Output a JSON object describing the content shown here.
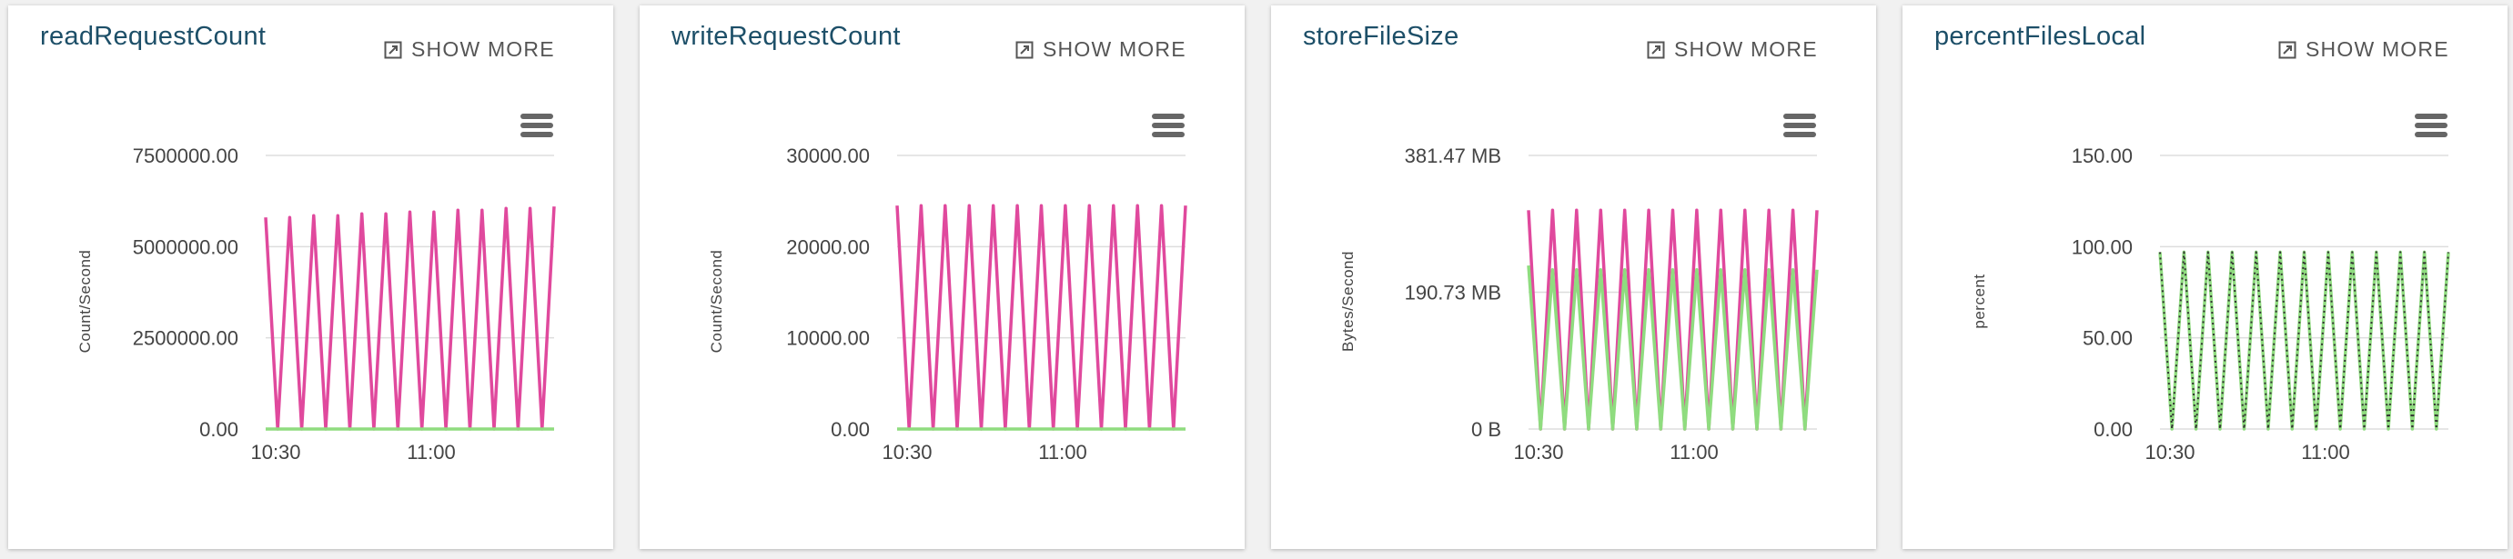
{
  "show_more_label": "SHOW MORE",
  "colors": {
    "pink": "#e0499d",
    "green": "#8fdc7f",
    "dark": "#333333",
    "grid": "#dddddd"
  },
  "chart_data": [
    {
      "type": "line",
      "title": "readRequestCount",
      "ylabel": "Count/Second",
      "ylim": [
        0,
        7500000
      ],
      "yticks": [
        0,
        2500000,
        5000000,
        7500000
      ],
      "yticklabels": [
        "0.00",
        "2500000.00",
        "5000000.00",
        "7500000.00"
      ],
      "xticklabels": [
        "10:30",
        "11:00"
      ],
      "grid": true,
      "series": [
        {
          "color": "pink",
          "style": "solid",
          "values": [
            5800000,
            0,
            5800000,
            0,
            5850000,
            0,
            5850000,
            0,
            5900000,
            0,
            5900000,
            0,
            5950000,
            0,
            5950000,
            0,
            6000000,
            0,
            6000000,
            0,
            6050000,
            0,
            6050000,
            0,
            6100000
          ]
        },
        {
          "color": "green",
          "style": "solid",
          "values": [
            0,
            0,
            0,
            0,
            0,
            0,
            0,
            0,
            0,
            0,
            0,
            0,
            0,
            0,
            0,
            0,
            0,
            0,
            0,
            0,
            0,
            0,
            0,
            0,
            0
          ]
        }
      ]
    },
    {
      "type": "line",
      "title": "writeRequestCount",
      "ylabel": "Count/Second",
      "ylim": [
        0,
        30000
      ],
      "yticks": [
        0,
        10000,
        20000,
        30000
      ],
      "yticklabels": [
        "0.00",
        "10000.00",
        "20000.00",
        "30000.00"
      ],
      "xticklabels": [
        "10:30",
        "11:00"
      ],
      "grid": true,
      "series": [
        {
          "color": "pink",
          "style": "solid",
          "values": [
            24500,
            0,
            24500,
            0,
            24500,
            0,
            24500,
            0,
            24500,
            0,
            24500,
            0,
            24500,
            0,
            24500,
            0,
            24500,
            0,
            24500,
            0,
            24500,
            0,
            24500,
            0,
            24500
          ]
        },
        {
          "color": "green",
          "style": "solid",
          "values": [
            0,
            0,
            0,
            0,
            0,
            0,
            0,
            0,
            0,
            0,
            0,
            0,
            0,
            0,
            0,
            0,
            0,
            0,
            0,
            0,
            0,
            0,
            0,
            0,
            0
          ]
        }
      ]
    },
    {
      "type": "line",
      "title": "storeFileSize",
      "ylabel": "Bytes/Second",
      "ylim": [
        0,
        381.47
      ],
      "yticks": [
        0,
        190.73,
        381.47
      ],
      "yticklabels": [
        "0 B",
        "190.73 MB",
        "381.47 MB"
      ],
      "xticklabels": [
        "10:30",
        "11:00"
      ],
      "grid": true,
      "series": [
        {
          "color": "pink",
          "style": "solid",
          "values": [
            305,
            0,
            305,
            0,
            305,
            0,
            305,
            0,
            305,
            0,
            305,
            0,
            305,
            0,
            305,
            0,
            305,
            0,
            305,
            0,
            305,
            0,
            305,
            0,
            305
          ]
        },
        {
          "color": "green",
          "style": "solid",
          "values": [
            228,
            0,
            222,
            0,
            222,
            0,
            222,
            0,
            222,
            0,
            222,
            0,
            222,
            0,
            222,
            0,
            222,
            0,
            222,
            0,
            222,
            0,
            222,
            0,
            222
          ]
        }
      ]
    },
    {
      "type": "line",
      "title": "percentFilesLocal",
      "ylabel": "percent",
      "ylim": [
        0,
        150
      ],
      "yticks": [
        0,
        50,
        100,
        150
      ],
      "yticklabels": [
        "0.00",
        "50.00",
        "100.00",
        "150.00"
      ],
      "xticklabels": [
        "10:30",
        "11:00"
      ],
      "grid": true,
      "series": [
        {
          "color": "green",
          "style": "solid",
          "values": [
            97,
            0,
            97,
            0,
            97,
            0,
            97,
            0,
            97,
            0,
            97,
            0,
            97,
            0,
            97,
            0,
            97,
            0,
            97,
            0,
            97,
            0,
            97,
            0,
            97
          ]
        },
        {
          "color": "dark",
          "style": "dotted",
          "values": [
            97,
            0,
            97,
            0,
            97,
            0,
            97,
            0,
            97,
            0,
            97,
            0,
            97,
            0,
            97,
            0,
            97,
            0,
            97,
            0,
            97,
            0,
            97,
            0,
            97
          ]
        }
      ]
    }
  ]
}
